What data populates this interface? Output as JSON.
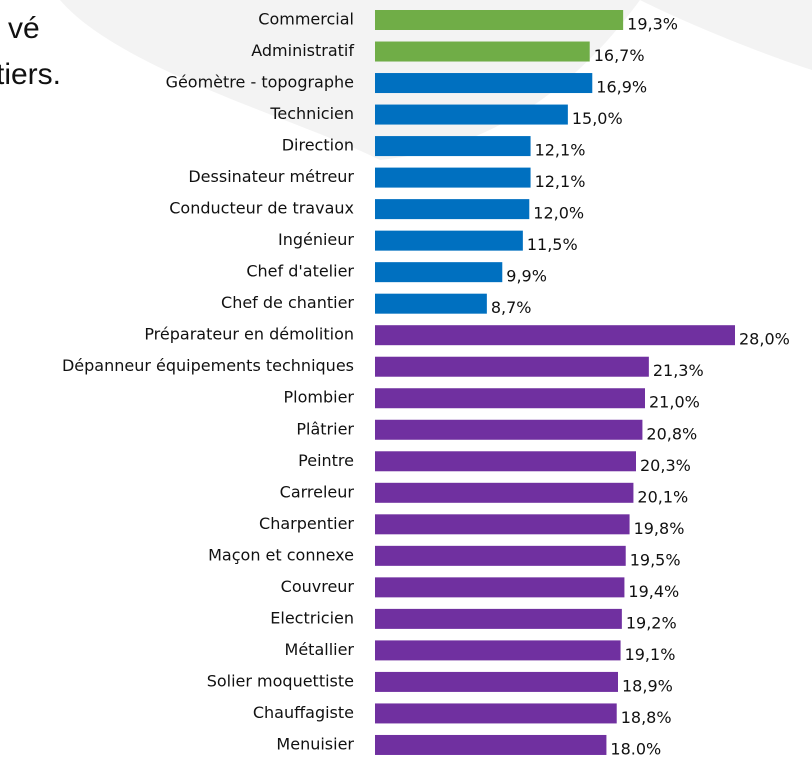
{
  "chart_data": {
    "type": "bar",
    "orientation": "horizontal",
    "annotations": [
      "vé",
      "tiers."
    ],
    "categories": [
      "Commercial",
      "Administratif",
      "Géomètre - topographe",
      "Technicien",
      "Direction",
      "Dessinateur métreur",
      "Conducteur de travaux",
      "Ingénieur",
      "Chef d'atelier",
      "Chef de chantier",
      "Préparateur en démolition",
      "Dépanneur équipements techniques",
      "Plombier",
      "Plâtrier",
      "Peintre",
      "Carreleur",
      "Charpentier",
      "Maçon et connexe",
      "Couvreur",
      "Electricien",
      "Métallier",
      "Solier moquettiste",
      "Chauffagiste",
      "Menuisier"
    ],
    "values": [
      19.3,
      16.7,
      16.9,
      15.0,
      12.1,
      12.1,
      12.0,
      11.5,
      9.9,
      8.7,
      28.0,
      21.3,
      21.0,
      20.8,
      20.3,
      20.1,
      19.8,
      19.5,
      19.4,
      19.2,
      19.1,
      18.9,
      18.8,
      18.0
    ],
    "value_labels": [
      "19,3%",
      "16,7%",
      "16,9%",
      "15,0%",
      "12,1%",
      "12,1%",
      "12,0%",
      "11,5%",
      "9,9%",
      "8,7%",
      "28,0%",
      "21,3%",
      "21,0%",
      "20,8%",
      "20,3%",
      "20,1%",
      "19,8%",
      "19,5%",
      "19,4%",
      "19,2%",
      "19,1%",
      "18,9%",
      "18,8%",
      "18.0%"
    ],
    "colors": [
      "#70ad47",
      "#70ad47",
      "#0070c0",
      "#0070c0",
      "#0070c0",
      "#0070c0",
      "#0070c0",
      "#0070c0",
      "#0070c0",
      "#0070c0",
      "#7030a0",
      "#7030a0",
      "#7030a0",
      "#7030a0",
      "#7030a0",
      "#7030a0",
      "#7030a0",
      "#7030a0",
      "#7030a0",
      "#7030a0",
      "#7030a0",
      "#7030a0",
      "#7030a0",
      "#7030a0"
    ]
  }
}
